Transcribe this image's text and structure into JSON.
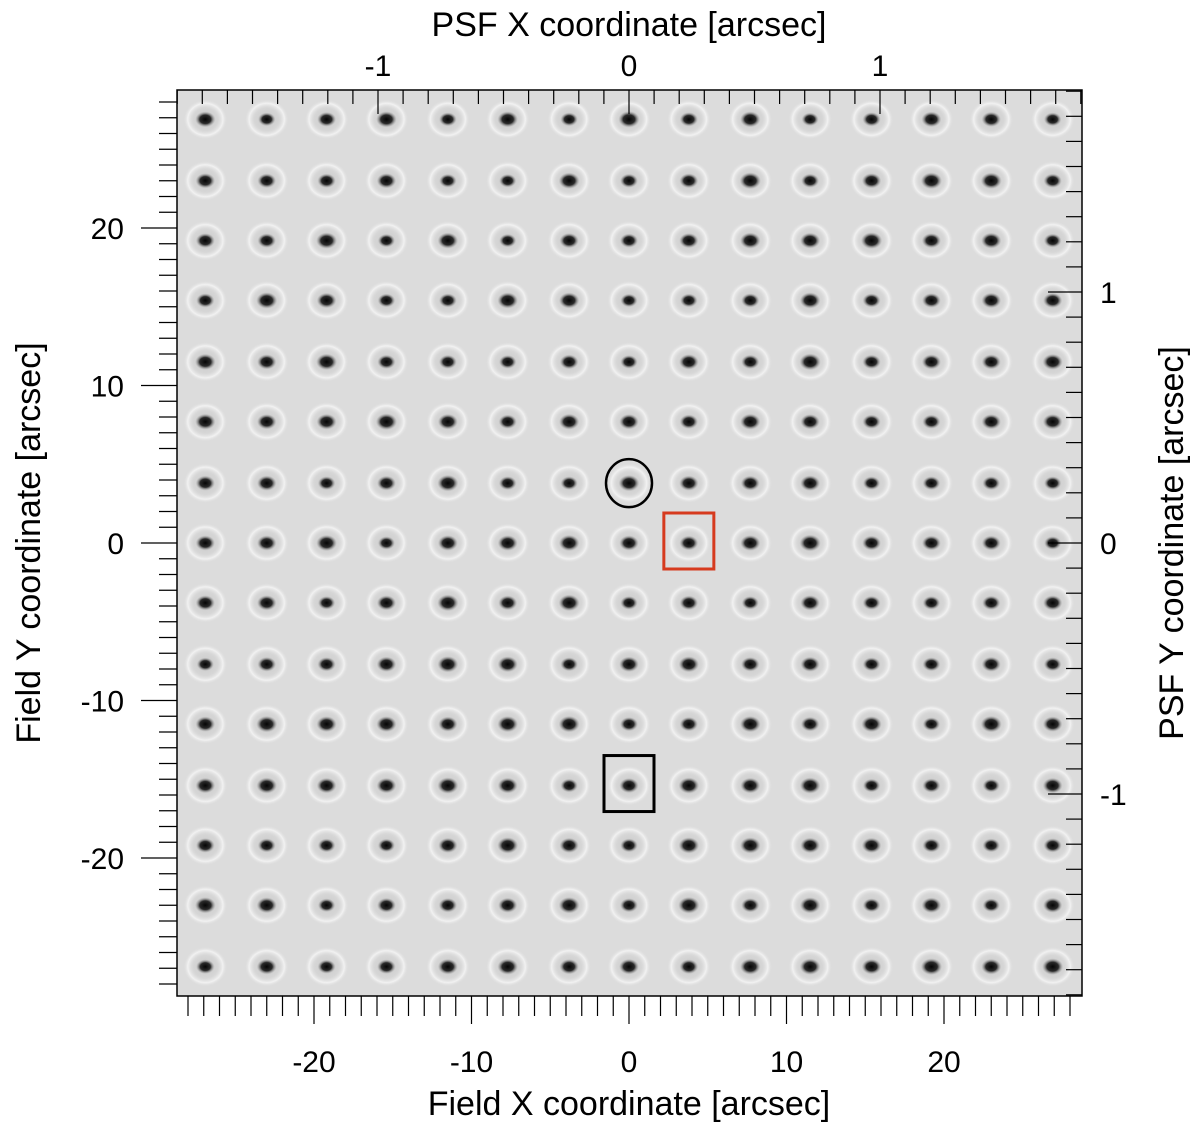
{
  "chart_data": {
    "type": "heatmap",
    "description_kind": "grid-of-point-spread-functions",
    "axes": {
      "bottom": {
        "label": "Field X coordinate [arcsec]",
        "range": [
          -28.7,
          28.7
        ],
        "major_ticks": [
          -20,
          -10,
          0,
          10,
          20
        ],
        "tick_labels": [
          "-20",
          "-10",
          "0",
          "10",
          "20"
        ]
      },
      "left": {
        "label": "Field Y coordinate [arcsec]",
        "range": [
          -28.7,
          28.7
        ],
        "major_ticks": [
          -20,
          -10,
          0,
          10,
          20
        ],
        "tick_labels": [
          "-20",
          "-10",
          "0",
          "10",
          "20"
        ]
      },
      "top": {
        "label": "PSF X coordinate [arcsec]",
        "range": [
          -1.8,
          1.8
        ],
        "major_ticks": [
          -1,
          0,
          1
        ],
        "tick_labels": [
          "-1",
          "0",
          "1"
        ]
      },
      "right": {
        "label": "PSF Y coordinate [arcsec]",
        "range": [
          -1.8,
          1.8
        ],
        "major_ticks": [
          -1,
          0,
          1
        ],
        "tick_labels": [
          "-1",
          "0",
          "1"
        ]
      }
    },
    "grid": {
      "x_positions": [
        -26.9,
        -23.0,
        -19.2,
        -15.4,
        -11.5,
        -7.7,
        -3.8,
        0,
        3.8,
        7.7,
        11.5,
        15.4,
        19.2,
        23.0,
        26.9
      ],
      "y_positions": [
        26.9,
        23.0,
        19.2,
        15.4,
        11.5,
        7.7,
        3.8,
        0,
        -3.8,
        -7.7,
        -11.5,
        -15.4,
        -19.2,
        -23.0,
        -26.9
      ]
    },
    "background_color": "#dcdcdc",
    "annotations": [
      {
        "shape": "circle",
        "x": 0,
        "y": 3.8,
        "color": "#000000"
      },
      {
        "shape": "square",
        "x": 3.8,
        "y": 0,
        "color": "#d63a1e"
      },
      {
        "shape": "square",
        "x": 0,
        "y": -15.4,
        "color": "#000000"
      }
    ]
  }
}
